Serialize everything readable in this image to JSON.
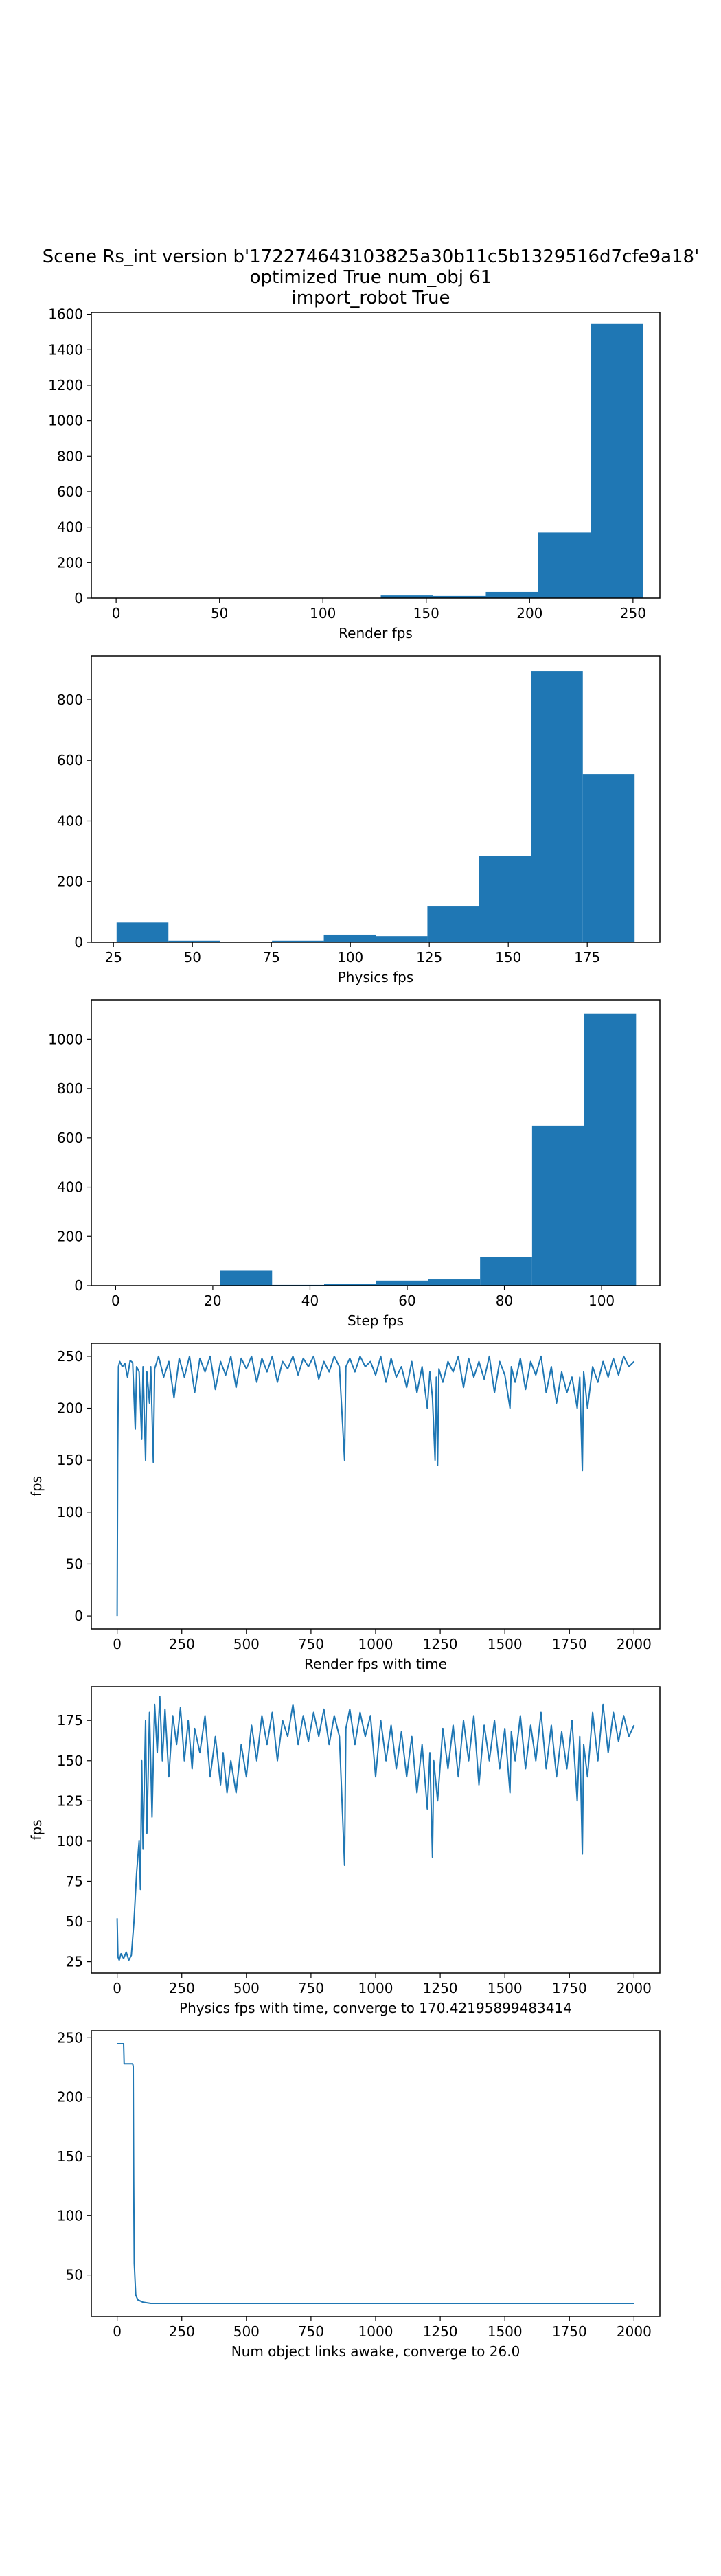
{
  "figure": {
    "title_lines": [
      "Scene Rs_int version b'172274643103825a30b11c5b1329516d7cfe9a18'",
      "optimized True num_obj 61",
      "import_robot True"
    ],
    "colors": {
      "series": "#1f77b4",
      "axes": "#000000",
      "background": "#ffffff"
    }
  },
  "chart_data": [
    {
      "type": "bar",
      "subtype": "histogram",
      "xlabel": "Render fps",
      "ylabel": "",
      "bins": [
        {
          "start": 128.0,
          "end": 153.4,
          "count": 15
        },
        {
          "start": 153.4,
          "end": 178.8,
          "count": 12
        },
        {
          "start": 178.8,
          "end": 204.2,
          "count": 35
        },
        {
          "start": 204.2,
          "end": 229.6,
          "count": 370
        },
        {
          "start": 229.6,
          "end": 255.0,
          "count": 1545
        }
      ],
      "xlim": [
        -12,
        263
      ],
      "ylim": [
        0,
        1610
      ],
      "xticks": [
        0,
        50,
        100,
        150,
        200,
        250
      ],
      "yticks": [
        0,
        200,
        400,
        600,
        800,
        1000,
        1200,
        1400,
        1600
      ]
    },
    {
      "type": "bar",
      "subtype": "histogram",
      "xlabel": "Physics fps",
      "ylabel": "",
      "bins": [
        {
          "start": 26,
          "end": 42.4,
          "count": 65
        },
        {
          "start": 42.4,
          "end": 58.8,
          "count": 5
        },
        {
          "start": 58.8,
          "end": 75.2,
          "count": 2
        },
        {
          "start": 75.2,
          "end": 91.6,
          "count": 5
        },
        {
          "start": 91.6,
          "end": 108.0,
          "count": 25
        },
        {
          "start": 108.0,
          "end": 124.4,
          "count": 20
        },
        {
          "start": 124.4,
          "end": 140.8,
          "count": 120
        },
        {
          "start": 140.8,
          "end": 157.2,
          "count": 285
        },
        {
          "start": 157.2,
          "end": 173.6,
          "count": 895
        },
        {
          "start": 173.6,
          "end": 190.0,
          "count": 555
        }
      ],
      "xlim": [
        18,
        198
      ],
      "ylim": [
        0,
        945
      ],
      "xticks": [
        25,
        50,
        75,
        100,
        125,
        150,
        175
      ],
      "yticks": [
        0,
        200,
        400,
        600,
        800
      ]
    },
    {
      "type": "bar",
      "subtype": "histogram",
      "xlabel": "Step fps",
      "ylabel": "",
      "bins": [
        {
          "start": 21.5,
          "end": 32.2,
          "count": 60
        },
        {
          "start": 32.2,
          "end": 42.9,
          "count": 3
        },
        {
          "start": 42.9,
          "end": 53.6,
          "count": 8
        },
        {
          "start": 53.6,
          "end": 64.3,
          "count": 20
        },
        {
          "start": 64.3,
          "end": 75.0,
          "count": 25
        },
        {
          "start": 75.0,
          "end": 85.7,
          "count": 115
        },
        {
          "start": 85.7,
          "end": 96.4,
          "count": 650
        },
        {
          "start": 96.4,
          "end": 107.1,
          "count": 1105
        }
      ],
      "xlim": [
        -5,
        112
      ],
      "ylim": [
        0,
        1160
      ],
      "xticks": [
        0,
        20,
        40,
        60,
        80,
        100
      ],
      "yticks": [
        0,
        200,
        400,
        600,
        800,
        1000
      ]
    },
    {
      "type": "line",
      "xlabel": "Render fps with time",
      "ylabel": "fps",
      "x_range": [
        0,
        2000
      ],
      "points": [
        [
          0,
          0
        ],
        [
          2,
          150
        ],
        [
          5,
          240
        ],
        [
          10,
          245
        ],
        [
          20,
          240
        ],
        [
          30,
          243
        ],
        [
          40,
          230
        ],
        [
          50,
          246
        ],
        [
          60,
          244
        ],
        [
          70,
          180
        ],
        [
          75,
          240
        ],
        [
          85,
          235
        ],
        [
          95,
          170
        ],
        [
          100,
          240
        ],
        [
          110,
          150
        ],
        [
          115,
          235
        ],
        [
          125,
          205
        ],
        [
          130,
          240
        ],
        [
          140,
          148
        ],
        [
          145,
          238
        ],
        [
          160,
          250
        ],
        [
          180,
          230
        ],
        [
          200,
          245
        ],
        [
          220,
          210
        ],
        [
          240,
          248
        ],
        [
          260,
          230
        ],
        [
          280,
          250
        ],
        [
          300,
          215
        ],
        [
          320,
          248
        ],
        [
          340,
          235
        ],
        [
          360,
          250
        ],
        [
          380,
          218
        ],
        [
          400,
          245
        ],
        [
          420,
          232
        ],
        [
          440,
          250
        ],
        [
          460,
          220
        ],
        [
          480,
          248
        ],
        [
          500,
          238
        ],
        [
          520,
          250
        ],
        [
          540,
          225
        ],
        [
          560,
          248
        ],
        [
          580,
          235
        ],
        [
          600,
          250
        ],
        [
          620,
          225
        ],
        [
          640,
          245
        ],
        [
          660,
          238
        ],
        [
          680,
          250
        ],
        [
          700,
          232
        ],
        [
          720,
          248
        ],
        [
          740,
          240
        ],
        [
          760,
          250
        ],
        [
          780,
          228
        ],
        [
          800,
          245
        ],
        [
          820,
          235
        ],
        [
          840,
          250
        ],
        [
          860,
          240
        ],
        [
          880,
          150
        ],
        [
          885,
          240
        ],
        [
          900,
          248
        ],
        [
          920,
          235
        ],
        [
          940,
          250
        ],
        [
          960,
          240
        ],
        [
          980,
          245
        ],
        [
          1000,
          232
        ],
        [
          1020,
          250
        ],
        [
          1040,
          225
        ],
        [
          1060,
          248
        ],
        [
          1080,
          230
        ],
        [
          1100,
          240
        ],
        [
          1120,
          220
        ],
        [
          1140,
          245
        ],
        [
          1160,
          215
        ],
        [
          1180,
          240
        ],
        [
          1200,
          200
        ],
        [
          1210,
          235
        ],
        [
          1220,
          210
        ],
        [
          1230,
          150
        ],
        [
          1235,
          230
        ],
        [
          1240,
          145
        ],
        [
          1245,
          238
        ],
        [
          1260,
          225
        ],
        [
          1280,
          245
        ],
        [
          1300,
          235
        ],
        [
          1320,
          250
        ],
        [
          1340,
          220
        ],
        [
          1360,
          248
        ],
        [
          1380,
          230
        ],
        [
          1400,
          245
        ],
        [
          1420,
          228
        ],
        [
          1440,
          250
        ],
        [
          1460,
          215
        ],
        [
          1480,
          245
        ],
        [
          1500,
          232
        ],
        [
          1520,
          200
        ],
        [
          1525,
          240
        ],
        [
          1540,
          225
        ],
        [
          1560,
          248
        ],
        [
          1580,
          218
        ],
        [
          1600,
          245
        ],
        [
          1620,
          232
        ],
        [
          1640,
          250
        ],
        [
          1660,
          215
        ],
        [
          1680,
          240
        ],
        [
          1700,
          205
        ],
        [
          1720,
          235
        ],
        [
          1740,
          215
        ],
        [
          1760,
          230
        ],
        [
          1780,
          200
        ],
        [
          1790,
          230
        ],
        [
          1800,
          140
        ],
        [
          1805,
          235
        ],
        [
          1820,
          200
        ],
        [
          1840,
          240
        ],
        [
          1860,
          225
        ],
        [
          1880,
          245
        ],
        [
          1900,
          230
        ],
        [
          1920,
          248
        ],
        [
          1940,
          232
        ],
        [
          1960,
          250
        ],
        [
          1980,
          240
        ],
        [
          2000,
          245
        ]
      ],
      "xlim": [
        -100,
        2100
      ],
      "ylim": [
        -12.5,
        262.5
      ],
      "xticks": [
        0,
        250,
        500,
        750,
        1000,
        1250,
        1500,
        1750,
        2000
      ],
      "yticks": [
        0,
        50,
        100,
        150,
        200,
        250
      ]
    },
    {
      "type": "line",
      "xlabel": "Physics fps with time, converge to 170.42195899483414",
      "ylabel": "fps",
      "x_range": [
        0,
        2000
      ],
      "points": [
        [
          0,
          52
        ],
        [
          3,
          28
        ],
        [
          8,
          26
        ],
        [
          15,
          30
        ],
        [
          25,
          27
        ],
        [
          35,
          31
        ],
        [
          45,
          26
        ],
        [
          55,
          29
        ],
        [
          65,
          50
        ],
        [
          75,
          80
        ],
        [
          85,
          100
        ],
        [
          90,
          70
        ],
        [
          95,
          150
        ],
        [
          100,
          95
        ],
        [
          110,
          175
        ],
        [
          115,
          105
        ],
        [
          125,
          180
        ],
        [
          135,
          115
        ],
        [
          145,
          185
        ],
        [
          155,
          155
        ],
        [
          165,
          190
        ],
        [
          175,
          150
        ],
        [
          185,
          182
        ],
        [
          200,
          140
        ],
        [
          215,
          178
        ],
        [
          230,
          160
        ],
        [
          245,
          183
        ],
        [
          260,
          150
        ],
        [
          275,
          175
        ],
        [
          290,
          145
        ],
        [
          300,
          170
        ],
        [
          320,
          155
        ],
        [
          340,
          178
        ],
        [
          360,
          140
        ],
        [
          380,
          165
        ],
        [
          400,
          135
        ],
        [
          410,
          155
        ],
        [
          425,
          130
        ],
        [
          440,
          150
        ],
        [
          460,
          130
        ],
        [
          480,
          160
        ],
        [
          500,
          140
        ],
        [
          520,
          172
        ],
        [
          540,
          150
        ],
        [
          560,
          178
        ],
        [
          580,
          160
        ],
        [
          600,
          180
        ],
        [
          620,
          150
        ],
        [
          640,
          175
        ],
        [
          660,
          165
        ],
        [
          680,
          185
        ],
        [
          700,
          160
        ],
        [
          720,
          178
        ],
        [
          740,
          162
        ],
        [
          760,
          180
        ],
        [
          780,
          165
        ],
        [
          800,
          182
        ],
        [
          820,
          160
        ],
        [
          840,
          178
        ],
        [
          860,
          165
        ],
        [
          880,
          85
        ],
        [
          885,
          170
        ],
        [
          900,
          182
        ],
        [
          920,
          160
        ],
        [
          940,
          180
        ],
        [
          960,
          165
        ],
        [
          980,
          178
        ],
        [
          1000,
          140
        ],
        [
          1020,
          175
        ],
        [
          1040,
          150
        ],
        [
          1060,
          172
        ],
        [
          1080,
          145
        ],
        [
          1100,
          168
        ],
        [
          1120,
          140
        ],
        [
          1140,
          165
        ],
        [
          1160,
          130
        ],
        [
          1180,
          160
        ],
        [
          1200,
          120
        ],
        [
          1210,
          155
        ],
        [
          1220,
          90
        ],
        [
          1225,
          150
        ],
        [
          1240,
          125
        ],
        [
          1260,
          170
        ],
        [
          1280,
          145
        ],
        [
          1300,
          172
        ],
        [
          1320,
          140
        ],
        [
          1340,
          175
        ],
        [
          1360,
          150
        ],
        [
          1380,
          178
        ],
        [
          1400,
          135
        ],
        [
          1420,
          172
        ],
        [
          1440,
          150
        ],
        [
          1460,
          175
        ],
        [
          1480,
          145
        ],
        [
          1500,
          170
        ],
        [
          1520,
          130
        ],
        [
          1525,
          168
        ],
        [
          1540,
          150
        ],
        [
          1560,
          178
        ],
        [
          1580,
          145
        ],
        [
          1600,
          172
        ],
        [
          1620,
          150
        ],
        [
          1640,
          180
        ],
        [
          1660,
          145
        ],
        [
          1680,
          172
        ],
        [
          1700,
          140
        ],
        [
          1720,
          168
        ],
        [
          1740,
          145
        ],
        [
          1760,
          175
        ],
        [
          1780,
          125
        ],
        [
          1790,
          165
        ],
        [
          1800,
          92
        ],
        [
          1805,
          160
        ],
        [
          1820,
          140
        ],
        [
          1840,
          180
        ],
        [
          1860,
          150
        ],
        [
          1880,
          185
        ],
        [
          1900,
          155
        ],
        [
          1920,
          180
        ],
        [
          1940,
          162
        ],
        [
          1960,
          178
        ],
        [
          1980,
          165
        ],
        [
          2000,
          172
        ]
      ],
      "xlim": [
        -100,
        2100
      ],
      "ylim": [
        18,
        196
      ],
      "xticks": [
        0,
        250,
        500,
        750,
        1000,
        1250,
        1500,
        1750,
        2000
      ],
      "yticks": [
        25,
        50,
        75,
        100,
        125,
        150,
        175
      ]
    },
    {
      "type": "line",
      "xlabel": "Num object links awake, converge to 26.0",
      "ylabel": "",
      "x_range": [
        0,
        2000
      ],
      "points": [
        [
          0,
          245
        ],
        [
          25,
          245
        ],
        [
          27,
          228
        ],
        [
          60,
          228
        ],
        [
          62,
          226
        ],
        [
          64,
          130
        ],
        [
          66,
          60
        ],
        [
          72,
          33
        ],
        [
          80,
          29
        ],
        [
          100,
          27
        ],
        [
          130,
          26
        ],
        [
          2000,
          26
        ]
      ],
      "xlim": [
        -100,
        2100
      ],
      "ylim": [
        15,
        256
      ],
      "xticks": [
        0,
        250,
        500,
        750,
        1000,
        1250,
        1500,
        1750,
        2000
      ],
      "yticks": [
        50,
        100,
        150,
        200,
        250
      ]
    }
  ]
}
